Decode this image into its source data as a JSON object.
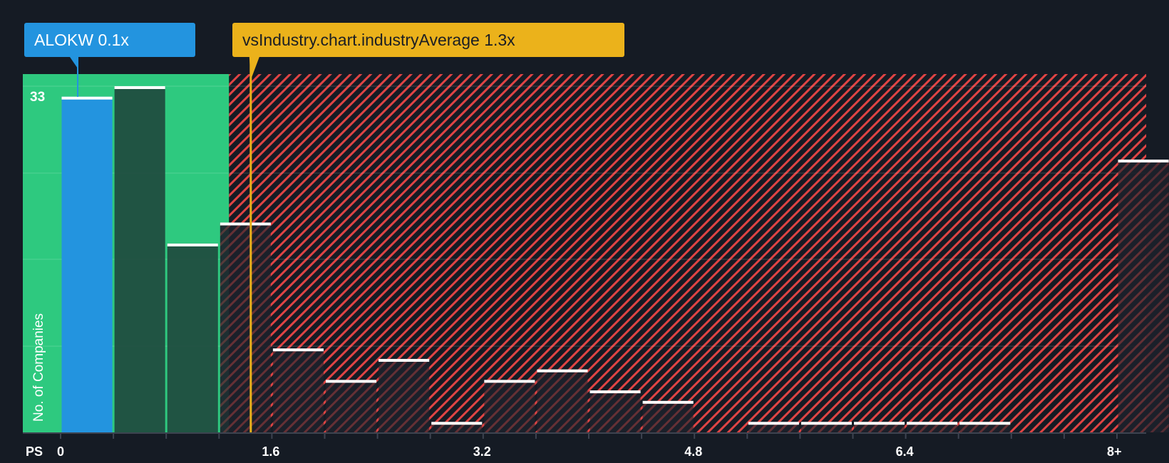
{
  "company_label": {
    "ticker": "ALOKW",
    "value": "0.1x",
    "text": "ALOKW 0.1x"
  },
  "industry_label": {
    "text": "vsIndustry.chart.industryAverage 1.3x",
    "value": "1.3x"
  },
  "axis": {
    "x_title": "PS",
    "x_ticks": [
      "0",
      "1.6",
      "3.2",
      "4.8",
      "6.4",
      "8+"
    ],
    "y_title": "No. of Companies",
    "y_max_label": "33"
  },
  "colors": {
    "background": "#151b24",
    "company_bar": "#2394df",
    "fair_zone": "#2ec97f",
    "fair_bars": "#1f4a3e",
    "over_zone_stripe": "#e04444",
    "industry_line": "#ebb21b",
    "bar_cap": "#ffffff"
  },
  "chart_data": {
    "type": "bar",
    "title": "",
    "xlabel": "PS",
    "ylabel": "No. of Companies",
    "ylim": [
      0,
      33
    ],
    "categories": [
      "0-0.4",
      "0.4-0.8",
      "0.8-1.2",
      "1.2-1.6",
      "1.6-2.0",
      "2.0-2.4",
      "2.4-2.8",
      "2.8-3.2",
      "3.2-3.6",
      "3.6-4.0",
      "4.0-4.4",
      "4.4-4.8",
      "4.8-5.2",
      "5.2-5.6",
      "5.6-6.0",
      "6.0-6.4",
      "6.4-6.8",
      "6.8-7.2",
      "7.2-7.6",
      "7.6-8.0",
      "8+"
    ],
    "values": [
      32,
      33,
      18,
      20,
      8,
      5,
      7,
      1,
      5,
      6,
      4,
      3,
      0,
      1,
      1,
      1,
      1,
      1,
      0,
      0,
      26
    ],
    "highlight": {
      "company": "ALOKW",
      "value": 0.1,
      "bin_index": 0
    },
    "industry_average": 1.3,
    "grid": true,
    "legend": "none"
  }
}
